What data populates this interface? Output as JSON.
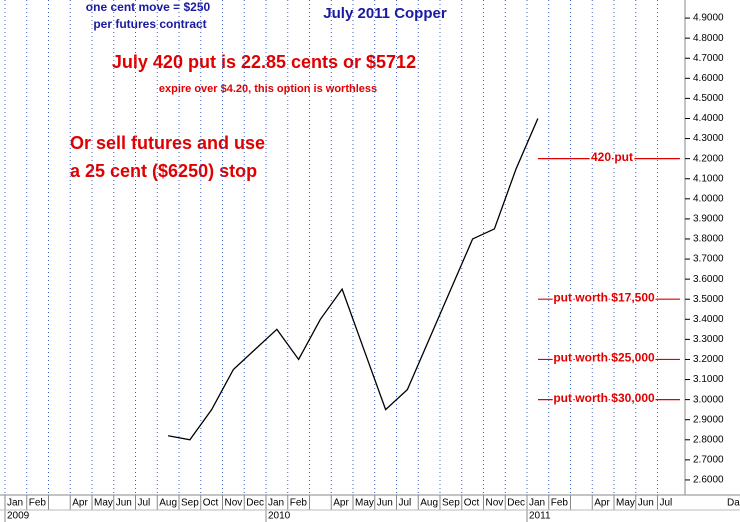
{
  "chart_data": {
    "type": "line",
    "title": "July 2011 Copper",
    "subtitle_lines": [
      "one cent move = $250",
      "per futures contract"
    ],
    "headline": "July 420 put is 22.85 cents or $5712",
    "note": "expire over $4.20, this option is worthless",
    "advice_lines": [
      "Or sell futures and use",
      "a 25 cent ($6250) stop"
    ],
    "levels": [
      {
        "text": "420 put",
        "value": 4.2
      },
      {
        "text": "put worth $17,500",
        "value": 3.5
      },
      {
        "text": "put worth $25,000",
        "value": 3.2
      },
      {
        "text": "put worth $30,000",
        "value": 3.0
      }
    ],
    "categories": [
      "Jan",
      "Feb",
      null,
      "Apr",
      "May",
      "Jun",
      "Jul",
      "Aug",
      "Sep",
      "Oct",
      "Nov",
      "Dec",
      "Jan",
      "Feb",
      null,
      "Apr",
      "May",
      "Jun",
      "Jul",
      "Aug",
      "Sep",
      "Oct",
      "Nov",
      "Dec",
      "Jan",
      "Feb",
      null,
      "Apr",
      "May",
      "Jun",
      "Jul"
    ],
    "year_labels": [
      "2009",
      "2010",
      "2011"
    ],
    "x_label": "Da",
    "series": [
      {
        "name": "July 2011 Copper",
        "color": "#000000",
        "values": [
          null,
          null,
          null,
          null,
          null,
          null,
          null,
          2.82,
          2.8,
          2.95,
          3.15,
          3.25,
          3.35,
          3.2,
          3.4,
          3.55,
          3.25,
          2.95,
          3.05,
          3.3,
          3.55,
          3.8,
          3.85,
          4.15,
          4.4,
          null,
          null,
          null,
          null,
          null,
          null
        ]
      }
    ],
    "ylim": [
      2.525,
      4.99
    ],
    "yticks": [
      {
        "value": 2.6,
        "label": "2.6000"
      },
      {
        "value": 2.7,
        "label": "2.7000"
      },
      {
        "value": 2.8,
        "label": "2.8000"
      },
      {
        "value": 2.9,
        "label": "2.9000"
      },
      {
        "value": 3.0,
        "label": "3.0000"
      },
      {
        "value": 3.1,
        "label": "3.1000"
      },
      {
        "value": 3.2,
        "label": "3.2000"
      },
      {
        "value": 3.3,
        "label": "3.3000"
      },
      {
        "value": 3.4,
        "label": "3.4000"
      },
      {
        "value": 3.5,
        "label": "3.5000"
      },
      {
        "value": 3.6,
        "label": "3.6000"
      },
      {
        "value": 3.7,
        "label": "3.7000"
      },
      {
        "value": 3.8,
        "label": "3.8000"
      },
      {
        "value": 3.9,
        "label": "3.9000"
      },
      {
        "value": 4.0,
        "label": "4.0000"
      },
      {
        "value": 4.1,
        "label": "4.1000"
      },
      {
        "value": 4.2,
        "label": "4.2000"
      },
      {
        "value": 4.3,
        "label": "4.3000"
      },
      {
        "value": 4.4,
        "label": "4.4000"
      },
      {
        "value": 4.5,
        "label": "4.5000"
      },
      {
        "value": 4.6,
        "label": "4.6000"
      },
      {
        "value": 4.7,
        "label": "4.7000"
      },
      {
        "value": 4.8,
        "label": "4.8000"
      },
      {
        "value": 4.9,
        "label": "4.9000"
      }
    ],
    "level_color": "#e00000",
    "text_color": "#e00000",
    "title_color": "#1a1aa0"
  }
}
